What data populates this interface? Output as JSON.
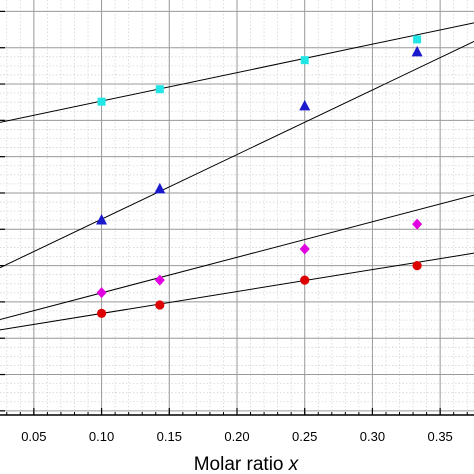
{
  "chart_data": {
    "type": "scatter",
    "xlabel": "Molar ratio x",
    "xlabel_main": "Molar ratio ",
    "xlabel_var": "x",
    "xlim": [
      0.025,
      0.375
    ],
    "x_ticks": [
      0.05,
      0.1,
      0.15,
      0.2,
      0.25,
      0.3,
      0.35
    ],
    "x_tick_labels": [
      "0.05",
      "0.10",
      "0.15",
      "0.20",
      "0.25",
      "0.30",
      "0.35"
    ],
    "grid": true,
    "series": [
      {
        "marker": "square",
        "color": "#22e6e6",
        "x": [
          0.1,
          0.143,
          0.25,
          0.333
        ],
        "y": [
          0.755,
          0.785,
          0.855,
          0.905
        ],
        "fit": {
          "x": [
            0.025,
            0.375
          ],
          "y": [
            0.705,
            0.945
          ]
        }
      },
      {
        "marker": "triangle",
        "color": "#1a1acc",
        "x": [
          0.1,
          0.143,
          0.25,
          0.333
        ],
        "y": [
          0.47,
          0.545,
          0.745,
          0.875
        ],
        "fit": {
          "x": [
            0.025,
            0.375
          ],
          "y": [
            0.355,
            0.9
          ]
        }
      },
      {
        "marker": "diamond",
        "color": "#e000e0",
        "x": [
          0.1,
          0.143,
          0.25,
          0.333
        ],
        "y": [
          0.295,
          0.325,
          0.4,
          0.46
        ],
        "fit": {
          "x": [
            0.025,
            0.375
          ],
          "y": [
            0.23,
            0.53
          ]
        }
      },
      {
        "marker": "circle",
        "color": "#dd0000",
        "x": [
          0.1,
          0.143,
          0.25,
          0.333
        ],
        "y": [
          0.245,
          0.265,
          0.325,
          0.36
        ],
        "fit": {
          "x": [
            0.025,
            0.375
          ],
          "y": [
            0.205,
            0.39
          ]
        }
      }
    ]
  }
}
